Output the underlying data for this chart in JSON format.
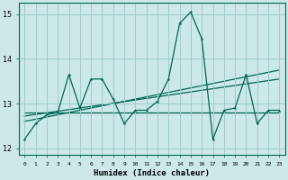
{
  "xlabel": "Humidex (Indice chaleur)",
  "bg_color": "#cce8e8",
  "grid_color": "#9ecece",
  "line_color": "#006655",
  "xlim": [
    -0.5,
    23.5
  ],
  "ylim": [
    11.85,
    15.25
  ],
  "yticks": [
    12,
    13,
    14,
    15
  ],
  "xticks": [
    0,
    1,
    2,
    3,
    4,
    5,
    6,
    7,
    8,
    9,
    10,
    11,
    12,
    13,
    14,
    15,
    16,
    17,
    18,
    19,
    20,
    21,
    22,
    23
  ],
  "x": [
    0,
    1,
    2,
    3,
    4,
    5,
    6,
    7,
    8,
    9,
    10,
    11,
    12,
    13,
    14,
    15,
    16,
    17,
    18,
    19,
    20,
    21,
    22,
    23
  ],
  "y": [
    12.2,
    12.55,
    12.75,
    12.8,
    13.65,
    12.9,
    13.55,
    13.55,
    13.1,
    12.55,
    12.85,
    12.85,
    13.05,
    13.55,
    14.8,
    15.05,
    14.45,
    12.2,
    12.85,
    12.9,
    13.65,
    12.55,
    12.85,
    12.85
  ],
  "trend1_y0": 12.8,
  "trend1_y1": 12.8,
  "trend2_y0": 12.72,
  "trend2_y1": 13.55,
  "trend3_y0": 12.6,
  "trend3_y1": 13.75
}
